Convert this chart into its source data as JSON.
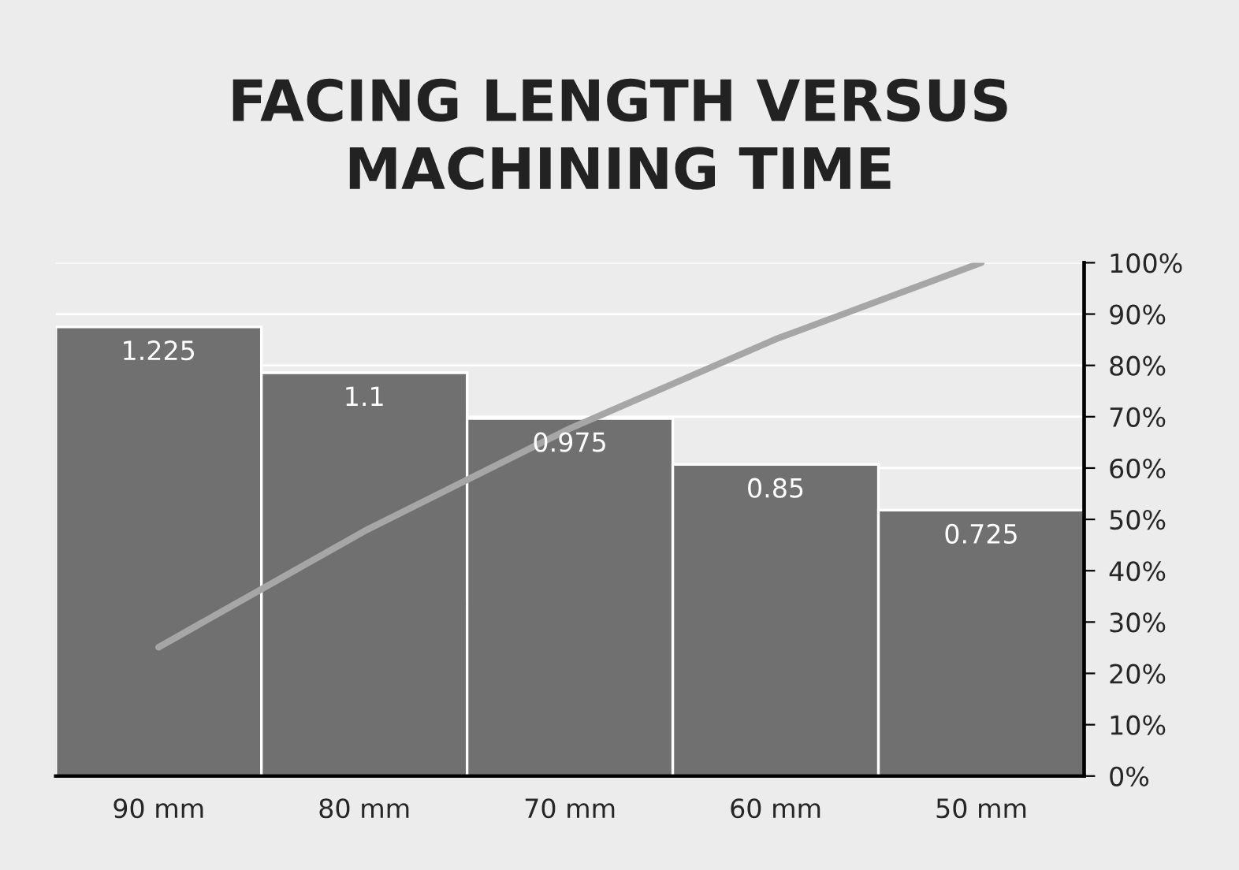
{
  "chart_data": {
    "type": "bar",
    "title": "FACING LENGTH VERSUS\nMACHINING TIME",
    "categories": [
      "90 mm",
      "80 mm",
      "70 mm",
      "60 mm",
      "50 mm"
    ],
    "series": [
      {
        "color": "#707070",
        "values": [
          1.225,
          1.1,
          0.975,
          0.85,
          0.725
        ],
        "data_labels": true
      },
      {
        "type": "line",
        "axis": "y2",
        "color": "#a6a6a6",
        "values": [
          25.1,
          47.7,
          67.7,
          85.1,
          100
        ]
      }
    ],
    "ylim": [
      0,
      1.4
    ],
    "y2lim": [
      0,
      100
    ],
    "y2ticks": [
      {
        "value": 0,
        "label": "0%"
      },
      {
        "value": 10,
        "label": "10%"
      },
      {
        "value": 20,
        "label": "20%"
      },
      {
        "value": 30,
        "label": "30%"
      },
      {
        "value": 40,
        "label": "40%"
      },
      {
        "value": 50,
        "label": "50%"
      },
      {
        "value": 60,
        "label": "60%"
      },
      {
        "value": 70,
        "label": "70%"
      },
      {
        "value": 80,
        "label": "80%"
      },
      {
        "value": 90,
        "label": "90%"
      },
      {
        "value": 100,
        "label": "100%"
      }
    ],
    "grid": "y"
  }
}
